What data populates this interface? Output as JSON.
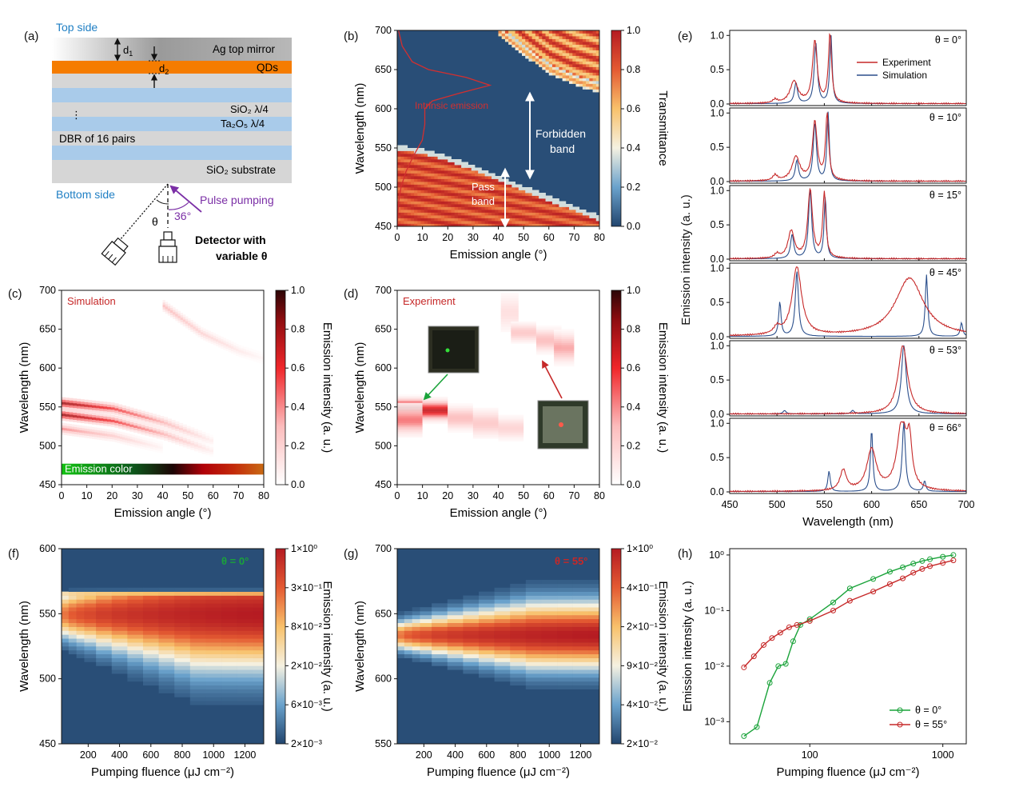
{
  "figure": {
    "a": {
      "panel_label": "(a)",
      "top_side": "Top side",
      "bottom_side": "Bottom side",
      "mirror": "Ag top mirror",
      "qds": "QDs",
      "d1": "d",
      "d1_sub": "1",
      "d2": "d",
      "d2_sub": "2",
      "sio2": "SiO₂ λ/4",
      "ta2o5": "Ta₂O₅ λ/4",
      "dots": "⋮",
      "dbr": "DBR of 16 pairs",
      "substrate": "SiO₂ substrate",
      "pulse": "Pulse pumping",
      "angle": "36°",
      "theta": "θ",
      "detector_line1": "Detector with",
      "detector_line2": "variable θ",
      "colors": {
        "mirror": "#a8a8a8",
        "qd": "#f57c00",
        "dbr_blue": "#a9cbea",
        "dbr_gray": "#d6d6d6",
        "top_text": "#1f7fc4",
        "pulse": "#7b2fa6"
      }
    },
    "b": {
      "panel_label": "(b)",
      "intrinsic": "Intrinsic emission",
      "forbidden_line1": "Forbidden",
      "forbidden_line2": "band",
      "pass_line1": "Pass",
      "pass_line2": "band",
      "colorbar_label": "Transmittance"
    },
    "c": {
      "panel_label": "(c)",
      "tag": "Simulation",
      "emission_color": "Emission color",
      "colorbar_label": "Emission intensity (a. u.)"
    },
    "d": {
      "panel_label": "(d)",
      "tag": "Experiment",
      "colorbar_label": "Emission intensity (a. u.)"
    },
    "e": {
      "panel_label": "(e)",
      "ylabel": "Emission intensity (a. u.)",
      "legend_exp": "Experiment",
      "legend_sim": "Simulation"
    },
    "f": {
      "panel_label": "(f)",
      "tag": "θ = 0°",
      "colorbar_label": "Emission intensity (a. u.)"
    },
    "g": {
      "panel_label": "(g)",
      "tag": "θ = 55°",
      "colorbar_label": "Emission intensity (a. u.)"
    },
    "h": {
      "panel_label": "(h)"
    }
  },
  "chart_data": [
    {
      "id": "b",
      "type": "heatmap",
      "xlabel": "Emission angle (°)",
      "ylabel": "Wavelength (nm)",
      "xlim": [
        0,
        80
      ],
      "ylim": [
        450,
        700
      ],
      "xticks": [
        0,
        10,
        20,
        30,
        40,
        50,
        60,
        70,
        80
      ],
      "yticks": [
        450,
        500,
        550,
        600,
        650,
        700
      ],
      "colorbar": {
        "label": "Transmittance",
        "ticks": [
          0.0,
          0.2,
          0.4,
          0.6,
          0.8,
          1.0
        ]
      },
      "band_edge": {
        "angle": [
          0,
          10,
          20,
          30,
          40,
          50,
          60,
          70,
          80
        ],
        "wavelength": [
          552,
          547,
          538,
          526,
          513,
          500,
          487,
          474,
          462
        ]
      },
      "upper_band_edge": {
        "angle": [
          40,
          50,
          60,
          70,
          80
        ],
        "wavelength": [
          700,
          675,
          652,
          638,
          628
        ]
      },
      "intrinsic_emission": {
        "wavelength": [
          450,
          480,
          500,
          520,
          540,
          560,
          580,
          600,
          610,
          620,
          630,
          640,
          650,
          660,
          680,
          700
        ],
        "relative_intensity": [
          0.0,
          0.01,
          0.03,
          0.07,
          0.13,
          0.2,
          0.22,
          0.22,
          0.28,
          0.5,
          0.74,
          0.55,
          0.25,
          0.12,
          0.04,
          0.01
        ]
      }
    },
    {
      "id": "c",
      "type": "heatmap",
      "xlabel": "Emission angle (°)",
      "ylabel": "Wavelength (nm)",
      "xlim": [
        0,
        80
      ],
      "ylim": [
        450,
        700
      ],
      "xticks": [
        0,
        10,
        20,
        30,
        40,
        50,
        60,
        70,
        80
      ],
      "yticks": [
        450,
        500,
        550,
        600,
        650,
        700
      ],
      "colorbar": {
        "label": "Emission intensity (a. u.)",
        "ticks": [
          0.0,
          0.2,
          0.4,
          0.6,
          0.8,
          1.0
        ]
      },
      "modes": [
        {
          "angle": [
            0,
            20,
            40,
            60
          ],
          "wavelength": [
            555,
            548,
            530,
            505
          ],
          "peak": 0.8
        },
        {
          "angle": [
            0,
            20,
            40,
            60
          ],
          "wavelength": [
            540,
            532,
            515,
            492
          ],
          "peak": 0.8
        },
        {
          "angle": [
            0,
            20,
            40
          ],
          "wavelength": [
            522,
            513,
            497
          ],
          "peak": 0.4
        },
        {
          "angle": [
            40,
            55,
            70,
            80
          ],
          "wavelength": [
            680,
            645,
            622,
            612
          ],
          "peak": 0.3
        }
      ]
    },
    {
      "id": "d",
      "type": "heatmap",
      "xlabel": "Emission angle (°)",
      "ylabel": "Wavelength (nm)",
      "xlim": [
        0,
        80
      ],
      "ylim": [
        450,
        700
      ],
      "xticks": [
        0,
        10,
        20,
        30,
        40,
        50,
        60,
        70,
        80
      ],
      "yticks": [
        450,
        500,
        550,
        600,
        650,
        700
      ],
      "colorbar": {
        "label": "Emission intensity (a. u.)",
        "ticks": [
          0.0,
          0.2,
          0.4,
          0.6,
          0.8,
          1.0
        ]
      },
      "columns": [
        {
          "angle": [
            0,
            10
          ],
          "center": 548,
          "width": 9,
          "peak": 0.95
        },
        {
          "angle": [
            0,
            10
          ],
          "center": 532,
          "width": 14,
          "peak": 0.45
        },
        {
          "angle": [
            10,
            20
          ],
          "center": 545,
          "width": 10,
          "peak": 0.7
        },
        {
          "angle": [
            20,
            30
          ],
          "center": 535,
          "width": 12,
          "peak": 0.3
        },
        {
          "angle": [
            30,
            40
          ],
          "center": 528,
          "width": 14,
          "peak": 0.25
        },
        {
          "angle": [
            40,
            50
          ],
          "center": 522,
          "width": 12,
          "peak": 0.2
        },
        {
          "angle": [
            41,
            48
          ],
          "center": 670,
          "width": 20,
          "peak": 0.15
        },
        {
          "angle": [
            45,
            55
          ],
          "center": 645,
          "width": 10,
          "peak": 0.25
        },
        {
          "angle": [
            55,
            65
          ],
          "center": 635,
          "width": 12,
          "peak": 0.3
        },
        {
          "angle": [
            62,
            70
          ],
          "center": 625,
          "width": 15,
          "peak": 0.35
        }
      ]
    },
    {
      "id": "e",
      "type": "line",
      "xlabel": "Wavelength (nm)",
      "ylabel": "Emission intensity (a. u.)",
      "xlim": [
        450,
        700
      ],
      "xticks": [
        450,
        500,
        550,
        600,
        650,
        700
      ],
      "ylim": [
        0,
        1.05
      ],
      "yticks": [
        0.0,
        0.5,
        1.0
      ],
      "legend": [
        "Experiment",
        "Simulation"
      ],
      "subplots": [
        {
          "label": "θ = 0°",
          "exp_peaks": [
            [
              518,
              0.32,
              5
            ],
            [
              540,
              0.9,
              3
            ],
            [
              556,
              1.0,
              2
            ],
            [
              498,
              0.05,
              3
            ]
          ],
          "sim_peaks": [
            [
              520,
              0.3,
              2
            ],
            [
              541,
              0.88,
              2
            ],
            [
              557,
              1.0,
              1.5
            ]
          ]
        },
        {
          "label": "θ = 10°",
          "exp_peaks": [
            [
              520,
              0.35,
              5
            ],
            [
              540,
              0.85,
              3
            ],
            [
              553,
              0.95,
              2
            ],
            [
              498,
              0.08,
              3
            ]
          ],
          "sim_peaks": [
            [
              521,
              0.3,
              2
            ],
            [
              540,
              0.85,
              2
            ],
            [
              554,
              1.0,
              1.5
            ]
          ]
        },
        {
          "label": "θ = 15°",
          "exp_peaks": [
            [
              515,
              0.4,
              4
            ],
            [
              535,
              1.0,
              3
            ],
            [
              550,
              0.95,
              2
            ],
            [
              500,
              0.06,
              3
            ]
          ],
          "sim_peaks": [
            [
              516,
              0.35,
              2
            ],
            [
              535,
              1.0,
              2
            ],
            [
              551,
              0.9,
              1.5
            ]
          ]
        },
        {
          "label": "θ = 45°",
          "exp_peaks": [
            [
              521,
              1.0,
              6
            ],
            [
              640,
              0.85,
              18
            ],
            [
              500,
              0.1,
              4
            ]
          ],
          "sim_peaks": [
            [
              503,
              0.5,
              1.5
            ],
            [
              521,
              0.95,
              2
            ],
            [
              658,
              0.9,
              1.5
            ],
            [
              695,
              0.2,
              1.5
            ]
          ]
        },
        {
          "label": "θ = 53°",
          "exp_peaks": [
            [
              633,
              1.0,
              6
            ]
          ],
          "sim_peaks": [
            [
              634,
              1.0,
              3
            ],
            [
              508,
              0.05,
              2
            ],
            [
              580,
              0.05,
              2
            ]
          ]
        },
        {
          "label": "θ = 66°",
          "exp_peaks": [
            [
              570,
              0.3,
              4
            ],
            [
              600,
              0.6,
              6
            ],
            [
              632,
              1.0,
              6
            ],
            [
              640,
              0.6,
              3
            ]
          ],
          "sim_peaks": [
            [
              555,
              0.3,
              1.5
            ],
            [
              600,
              0.9,
              1.5
            ],
            [
              634,
              1.0,
              2
            ],
            [
              656,
              0.15,
              1.5
            ]
          ]
        }
      ]
    },
    {
      "id": "f",
      "type": "heatmap",
      "xlabel": "Pumping fluence (μJ cm⁻²)",
      "ylabel": "Wavelength (nm)",
      "xlim": [
        30,
        1320
      ],
      "ylim": [
        450,
        600
      ],
      "xticks": [
        200,
        400,
        600,
        800,
        1000,
        1200
      ],
      "yticks": [
        450,
        500,
        550,
        600
      ],
      "colorbar": {
        "label": "Emission intensity (a. u.)",
        "ticks": [
          "2×10⁻³",
          "6×10⁻³",
          "2×10⁻²",
          "8×10⁻²",
          "3×10⁻¹",
          "1×10⁰"
        ]
      },
      "fluence": [
        50,
        100,
        150,
        200,
        300,
        400,
        500,
        600,
        700,
        800,
        900,
        1000,
        1100,
        1200,
        1300
      ],
      "peak_wavelength": 548,
      "upper_edge": 562
    },
    {
      "id": "g",
      "type": "heatmap",
      "xlabel": "Pumping fluence (μJ cm⁻²)",
      "ylabel": "Wavelength (nm)",
      "xlim": [
        30,
        1320
      ],
      "ylim": [
        550,
        700
      ],
      "xticks": [
        200,
        400,
        600,
        800,
        1000,
        1200
      ],
      "yticks": [
        550,
        600,
        650,
        700
      ],
      "colorbar": {
        "label": "Emission intensity (a. u.)",
        "ticks": [
          "2×10⁻²",
          "4×10⁻²",
          "9×10⁻²",
          "2×10⁻¹",
          "4×10⁻¹",
          "1×10⁰"
        ]
      },
      "fluence": [
        50,
        100,
        150,
        200,
        300,
        400,
        500,
        600,
        700,
        800,
        900,
        1000,
        1100,
        1200,
        1300
      ],
      "peak_wavelength": 632
    },
    {
      "id": "h",
      "type": "scatter",
      "xlabel": "Pumping fluence (μJ cm⁻²)",
      "ylabel": "Emission intensity (a. u.)",
      "xscale": "log",
      "yscale": "log",
      "xlim": [
        25,
        1500
      ],
      "ylim": [
        0.0004,
        1.3
      ],
      "xticks": [
        100,
        1000
      ],
      "xtick_labels": [
        "100",
        "1000"
      ],
      "yticks": [
        0.001,
        0.01,
        0.1,
        1
      ],
      "ytick_labels": [
        "10⁻³",
        "10⁻²",
        "10⁻¹",
        "10⁰"
      ],
      "legend_position": "lower-right",
      "series": [
        {
          "name": "θ = 0°",
          "color": "#1aa33a",
          "x": [
            32,
            40,
            50,
            58,
            66,
            75,
            85,
            100,
            150,
            200,
            300,
            400,
            500,
            600,
            700,
            800,
            1000,
            1200
          ],
          "y": [
            0.00055,
            0.0008,
            0.005,
            0.01,
            0.011,
            0.028,
            0.055,
            0.07,
            0.14,
            0.25,
            0.37,
            0.5,
            0.6,
            0.7,
            0.78,
            0.84,
            0.93,
            1.0
          ]
        },
        {
          "name": "θ = 55°",
          "color": "#c62828",
          "x": [
            32,
            38,
            45,
            52,
            60,
            70,
            80,
            100,
            150,
            200,
            300,
            400,
            500,
            600,
            700,
            800,
            1000,
            1200
          ],
          "y": [
            0.0095,
            0.015,
            0.024,
            0.032,
            0.04,
            0.05,
            0.055,
            0.065,
            0.1,
            0.15,
            0.22,
            0.3,
            0.38,
            0.48,
            0.56,
            0.63,
            0.72,
            0.8
          ]
        }
      ]
    }
  ]
}
